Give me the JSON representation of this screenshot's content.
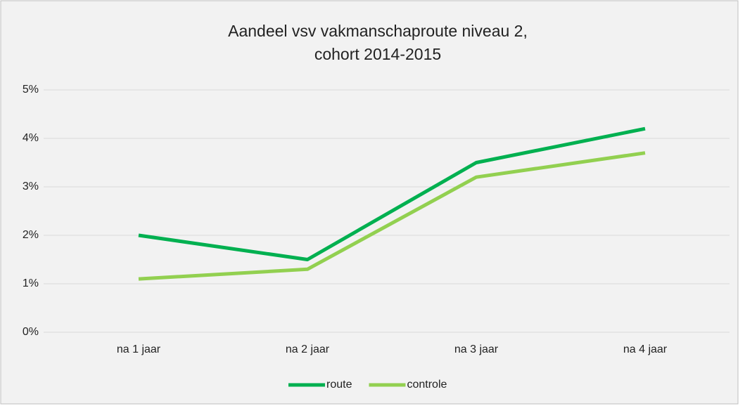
{
  "chart_data": {
    "type": "line",
    "title": [
      "Aandeel vsv vakmanschaproute niveau 2,",
      "cohort 2014-2015"
    ],
    "categories": [
      "na 1 jaar",
      "na 2 jaar",
      "na 3 jaar",
      "na 4 jaar"
    ],
    "series": [
      {
        "name": "route",
        "color": "#00b050",
        "values": [
          2.0,
          1.5,
          3.5,
          4.2
        ]
      },
      {
        "name": "controle",
        "color": "#92d050",
        "values": [
          1.1,
          1.3,
          3.2,
          3.7
        ]
      }
    ],
    "ylim": [
      0,
      5
    ],
    "yticks": [
      {
        "value": 0,
        "label": "0%"
      },
      {
        "value": 1,
        "label": "1%"
      },
      {
        "value": 2,
        "label": "2%"
      },
      {
        "value": 3,
        "label": "3%"
      },
      {
        "value": 4,
        "label": "4%"
      },
      {
        "value": 5,
        "label": "5%"
      }
    ],
    "grid": true,
    "legend": "bottom"
  }
}
